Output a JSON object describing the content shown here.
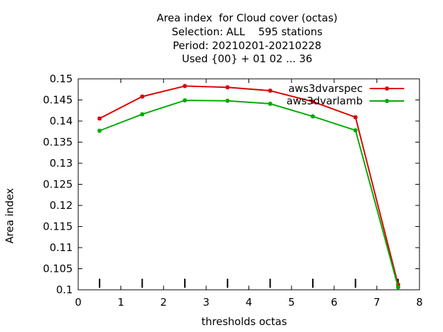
{
  "chart_data": {
    "type": "line",
    "title_lines": [
      "Area index  for Cloud cover (octas)",
      "Selection: ALL    595 stations",
      "Period: 20210201-20210228",
      "Used {00} + 01 02 ... 36"
    ],
    "xlabel": "thresholds octas",
    "ylabel": "Area index",
    "xlim": [
      0,
      8
    ],
    "ylim": [
      0.1,
      0.15
    ],
    "x_ticks": [
      0,
      1,
      2,
      3,
      4,
      5,
      6,
      7,
      8
    ],
    "y_ticks": [
      0.1,
      0.105,
      0.11,
      0.115,
      0.12,
      0.125,
      0.13,
      0.135,
      0.14,
      0.145,
      0.15
    ],
    "y_tick_labels": [
      "0.1",
      "0.105",
      "0.11",
      "0.115",
      "0.12",
      "0.125",
      "0.13",
      "0.135",
      "0.14",
      "0.145",
      "0.15"
    ],
    "grid": false,
    "legend_position": "top-right",
    "threshold_marker_x": [
      0.5,
      1.5,
      2.5,
      3.5,
      4.5,
      5.5,
      6.5,
      7.5
    ],
    "series": [
      {
        "name": "aws3dvarspec",
        "color": "#dd0000",
        "x": [
          0.5,
          1.5,
          2.5,
          3.5,
          4.5,
          5.5,
          6.5,
          7.5
        ],
        "y": [
          0.1406,
          0.1458,
          0.1483,
          0.148,
          0.1472,
          0.1446,
          0.1409,
          0.1012
        ]
      },
      {
        "name": "aws3dvarlamb",
        "color": "#00aa00",
        "x": [
          0.5,
          1.5,
          2.5,
          3.5,
          4.5,
          5.5,
          6.5,
          7.5
        ],
        "y": [
          0.1377,
          0.1416,
          0.1449,
          0.1448,
          0.1441,
          0.1411,
          0.1378,
          0.1006
        ]
      }
    ]
  }
}
